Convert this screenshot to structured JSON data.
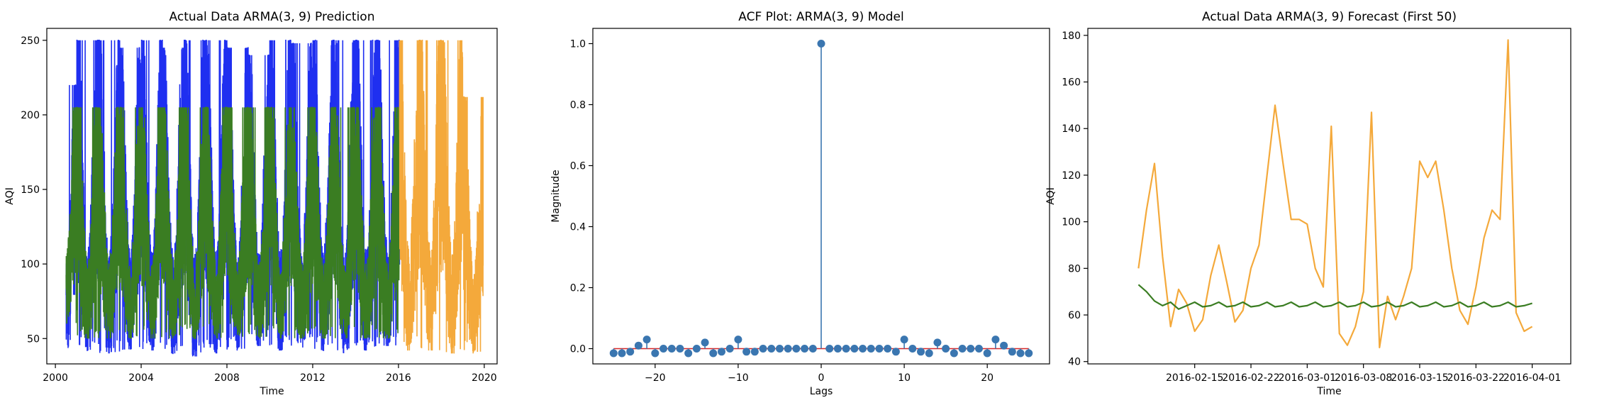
{
  "chart_data": [
    {
      "type": "line",
      "title": "Actual Data ARMA(3, 9) Prediction",
      "xlabel": "Time",
      "ylabel": "AQI",
      "xlim": [
        1999.6,
        2020.6
      ],
      "ylim": [
        33,
        258
      ],
      "x_ticks": [
        2000,
        2004,
        2008,
        2012,
        2016,
        2020
      ],
      "x_tick_labels": [
        "2000",
        "2004",
        "2008",
        "2012",
        "2016",
        "2020"
      ],
      "y_ticks": [
        50,
        100,
        150,
        200,
        250
      ],
      "y_tick_labels": [
        "50",
        "100",
        "150",
        "200",
        "250"
      ],
      "grid": false,
      "series": [
        {
          "color": "#1f2ff0",
          "x_start": 2000.5,
          "x_end": 2016.05,
          "season_peaks_x": [
            2001.0,
            2002.0,
            2003.0,
            2004.0,
            2005.0,
            2006.0,
            2007.0,
            2008.0,
            2009.0,
            2010.0,
            2011.0,
            2012.0,
            2013.0,
            2014.0,
            2015.0,
            2016.0
          ],
          "season_peak_values": [
            220,
            250,
            250,
            245,
            250,
            245,
            250,
            250,
            245,
            240,
            250,
            248,
            250,
            250,
            250,
            250
          ],
          "season_trough_values": [
            43,
            42,
            40,
            42,
            42,
            40,
            38,
            40,
            42,
            45,
            42,
            44,
            42,
            40,
            42,
            45
          ]
        },
        {
          "color": "#3a7d22",
          "x_start": 2000.5,
          "x_end": 2016.05,
          "season_peak_values": [
            205,
            205,
            205,
            205,
            205,
            205,
            205,
            205,
            205,
            205,
            205,
            205,
            205,
            205,
            205,
            205
          ],
          "season_trough_values": [
            60,
            50,
            50,
            50,
            50,
            50,
            50,
            50,
            50,
            50,
            50,
            50,
            50,
            50,
            50,
            50
          ]
        },
        {
          "color": "#f4a93b",
          "x_start": 2016.05,
          "x_end": 2019.95,
          "season_peak_values": [
            250,
            250,
            250,
            212
          ],
          "season_trough_values": [
            42,
            42,
            40,
            40
          ]
        }
      ]
    },
    {
      "type": "scatter",
      "title": "ACF Plot: ARMA(3, 9) Model",
      "xlabel": "Lags",
      "ylabel": "Magnitude",
      "xlim": [
        -27.5,
        27.5
      ],
      "ylim": [
        -0.05,
        1.05
      ],
      "x_ticks": [
        -20,
        -10,
        0,
        10,
        20
      ],
      "x_tick_labels": [
        "−20",
        "−10",
        "0",
        "10",
        "20"
      ],
      "y_ticks": [
        0.0,
        0.2,
        0.4,
        0.6,
        0.8,
        1.0
      ],
      "y_tick_labels": [
        "0.0",
        "0.2",
        "0.4",
        "0.6",
        "0.8",
        "1.0"
      ],
      "grid": false,
      "lags": [
        -25,
        -24,
        -23,
        -22,
        -21,
        -20,
        -19,
        -18,
        -17,
        -16,
        -15,
        -14,
        -13,
        -12,
        -11,
        -10,
        -9,
        -8,
        -7,
        -6,
        -5,
        -4,
        -3,
        -2,
        -1,
        0,
        1,
        2,
        3,
        4,
        5,
        6,
        7,
        8,
        9,
        10,
        11,
        12,
        13,
        14,
        15,
        16,
        17,
        18,
        19,
        20,
        21,
        22,
        23,
        24,
        25
      ],
      "values": [
        -0.015,
        -0.015,
        -0.01,
        0.01,
        0.03,
        -0.015,
        0.0,
        0.0,
        0.0,
        -0.015,
        0.0,
        0.02,
        -0.015,
        -0.01,
        0.0,
        0.03,
        -0.01,
        -0.01,
        0.0,
        0.0,
        0.0,
        0.0,
        0.0,
        0.0,
        0.0,
        1.0,
        0.0,
        0.0,
        0.0,
        0.0,
        0.0,
        0.0,
        0.0,
        0.0,
        -0.01,
        0.03,
        0.0,
        -0.01,
        -0.015,
        0.02,
        0.0,
        -0.015,
        0.0,
        0.0,
        0.0,
        -0.015,
        0.03,
        0.01,
        -0.01,
        -0.015,
        -0.015
      ],
      "marker_color": "#3a76b0",
      "baseline_color": "#d62728"
    },
    {
      "type": "line",
      "title": "Actual Data ARMA(3, 9) Forecast (First 50)",
      "xlabel": "Time",
      "ylabel": "AQI",
      "xlim": [
        -6.3,
        53.8
      ],
      "ylim": [
        39,
        183
      ],
      "x_tick_positions": [
        7,
        14,
        21,
        28,
        35,
        42,
        49
      ],
      "x_tick_labels": [
        "2016-02-15",
        "2016-02-22",
        "2016-03-01",
        "2016-03-08",
        "2016-03-15",
        "2016-03-22",
        "2016-04-01"
      ],
      "y_ticks": [
        40,
        60,
        80,
        100,
        120,
        140,
        160,
        180
      ],
      "y_tick_labels": [
        "40",
        "60",
        "80",
        "100",
        "120",
        "140",
        "160",
        "180"
      ],
      "grid": false,
      "series": [
        {
          "color": "#f4a93b",
          "x": [
            0,
            1,
            2,
            3,
            4,
            5,
            6,
            7,
            8,
            9,
            10,
            11,
            12,
            13,
            14,
            15,
            16,
            17,
            18,
            19,
            20,
            21,
            22,
            23,
            24,
            25,
            26,
            27,
            28,
            29,
            30,
            31,
            32,
            33,
            34,
            35,
            36,
            37,
            38,
            39,
            40,
            41,
            42,
            43,
            44,
            45,
            46,
            47,
            48,
            49
          ],
          "values": [
            80,
            105,
            125,
            85,
            55,
            71,
            65,
            53,
            58,
            77,
            90,
            74,
            57,
            62,
            80,
            90,
            120,
            150,
            125,
            101,
            101,
            99,
            80,
            72,
            141,
            52,
            47,
            55,
            70,
            147,
            46,
            68,
            58,
            68,
            80,
            126,
            119,
            126,
            105,
            80,
            62,
            56,
            72,
            93,
            105,
            101,
            178,
            61,
            53,
            55
          ]
        },
        {
          "color": "#3a7d22",
          "x": [
            0,
            1,
            2,
            3,
            4,
            5,
            6,
            7,
            8,
            9,
            10,
            11,
            12,
            13,
            14,
            15,
            16,
            17,
            18,
            19,
            20,
            21,
            22,
            23,
            24,
            25,
            26,
            27,
            28,
            29,
            30,
            31,
            32,
            33,
            34,
            35,
            36,
            37,
            38,
            39,
            40,
            41,
            42,
            43,
            44,
            45,
            46,
            47,
            48,
            49
          ],
          "values": [
            73,
            70,
            66,
            64,
            65.5,
            62.5,
            64,
            65.5,
            63.5,
            64,
            65.5,
            63.5,
            64,
            65.5,
            63.5,
            64,
            65.5,
            63.5,
            64,
            65.5,
            63.5,
            64,
            65.5,
            63.5,
            64,
            65.5,
            63.5,
            64,
            65.5,
            63.5,
            64,
            65.5,
            63.5,
            64,
            65.5,
            63.5,
            64,
            65.5,
            63.5,
            64,
            65.5,
            63.5,
            64,
            65.5,
            63.5,
            64,
            65.5,
            63.5,
            64,
            65
          ]
        }
      ]
    }
  ]
}
